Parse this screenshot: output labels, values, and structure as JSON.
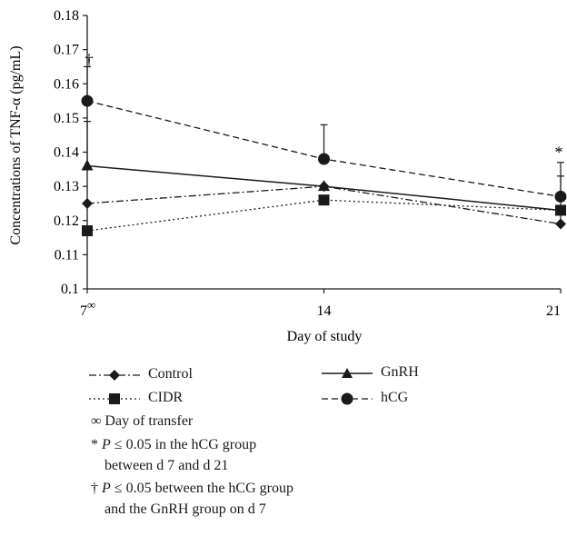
{
  "chart_data": {
    "type": "line",
    "xlabel": "Day of study",
    "ylabel": "Concentrations of TNF-α (pg/mL)",
    "x": [
      7,
      14,
      21
    ],
    "x_tick_labels": [
      "7",
      "14",
      "21"
    ],
    "x_first_tick_superscript": "∞",
    "ylim": [
      0.1,
      0.18
    ],
    "y_ticks": [
      "0.1",
      "0.11",
      "0.12",
      "0.13",
      "0.14",
      "0.15",
      "0.16",
      "0.17",
      "0.18"
    ],
    "series": [
      {
        "name": "Control",
        "values": [
          0.125,
          0.13,
          0.119
        ],
        "marker": "diamond",
        "dash": "dash-dot"
      },
      {
        "name": "CIDR",
        "values": [
          0.117,
          0.126,
          0.123
        ],
        "marker": "square",
        "dash": "dotted"
      },
      {
        "name": "GnRH",
        "values": [
          0.136,
          0.13,
          0.123
        ],
        "marker": "triangle",
        "dash": "solid"
      },
      {
        "name": "hCG",
        "values": [
          0.155,
          0.138,
          0.127
        ],
        "marker": "circle",
        "dash": "dashed"
      }
    ],
    "error_bars": [
      {
        "series": "hCG",
        "x": 7,
        "upper": 0.165
      },
      {
        "series": "GnRH",
        "x": 7,
        "upper": 0.149
      },
      {
        "series": "hCG",
        "x": 14,
        "upper": 0.148
      },
      {
        "series": "hCG",
        "x": 21,
        "upper": 0.137
      },
      {
        "series": "Control",
        "x": 21,
        "upper": 0.133
      }
    ],
    "annotations": [
      {
        "text": "†",
        "x": 7,
        "y": 0.167
      },
      {
        "text": "*",
        "x": 21,
        "y": 0.14
      }
    ],
    "grid": false
  },
  "legend": {
    "control": "Control",
    "gnrh": "GnRH",
    "cidr": "CIDR",
    "hcg": "hCG"
  },
  "notes": {
    "transfer_symbol": "∞",
    "transfer_text": "Day of transfer",
    "star_symbol": "*",
    "star_p": "P",
    "star_rest": "≤ 0.05 in the hCG group",
    "star_line2": "between d 7 and d 21",
    "dagger_symbol": "†",
    "dagger_p": "P",
    "dagger_rest": "≤ 0.05 between the hCG group",
    "dagger_line2": "and the GnRH group on d 7"
  }
}
